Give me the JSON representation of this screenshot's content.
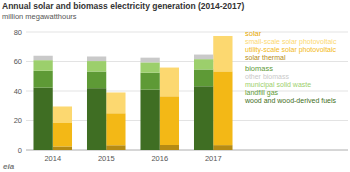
{
  "chart_data": {
    "type": "bar",
    "title": "Annual solar and biomass electricity generation (2014-2017)",
    "subtitle": "million megawatthours",
    "logo": "eia",
    "categories": [
      "2014",
      "2015",
      "2016",
      "2017"
    ],
    "stacked": true,
    "grid": true,
    "legend": "right",
    "ylim": [
      0,
      80
    ],
    "yticks": [
      0,
      20,
      40,
      60,
      80
    ],
    "groups": [
      {
        "name": "solar",
        "color": "#e8aa00",
        "series": [
          {
            "name": "small-scale solar photovoltaic",
            "color": "#fcd870",
            "values": [
              11.2,
              14.1,
              19.5,
              24.0
            ]
          },
          {
            "name": "utility-scale solar photovoltaic",
            "color": "#f3b816",
            "values": [
              15.9,
              21.7,
              33.0,
              50.0
            ]
          },
          {
            "name": "solar thermal",
            "color": "#b58b14",
            "values": [
              2.4,
              3.2,
              3.4,
              3.3
            ]
          }
        ]
      },
      {
        "name": "biomass",
        "color": "#5e9a36",
        "series": [
          {
            "name": "other biomass",
            "color": "#c9c9c9",
            "values": [
              3.0,
              3.1,
              3.2,
              3.1
            ]
          },
          {
            "name": "municipal solid waste",
            "color": "#9ccf6c",
            "values": [
              7.2,
              7.1,
              7.0,
              7.0
            ]
          },
          {
            "name": "landfill gas",
            "color": "#5e9a36",
            "values": [
              11.4,
              11.3,
              11.5,
              11.4
            ]
          },
          {
            "name": "wood and wood-derived fuels",
            "color": "#3f6e23",
            "values": [
              42.3,
              41.9,
              40.9,
              43.2
            ]
          }
        ]
      }
    ]
  }
}
